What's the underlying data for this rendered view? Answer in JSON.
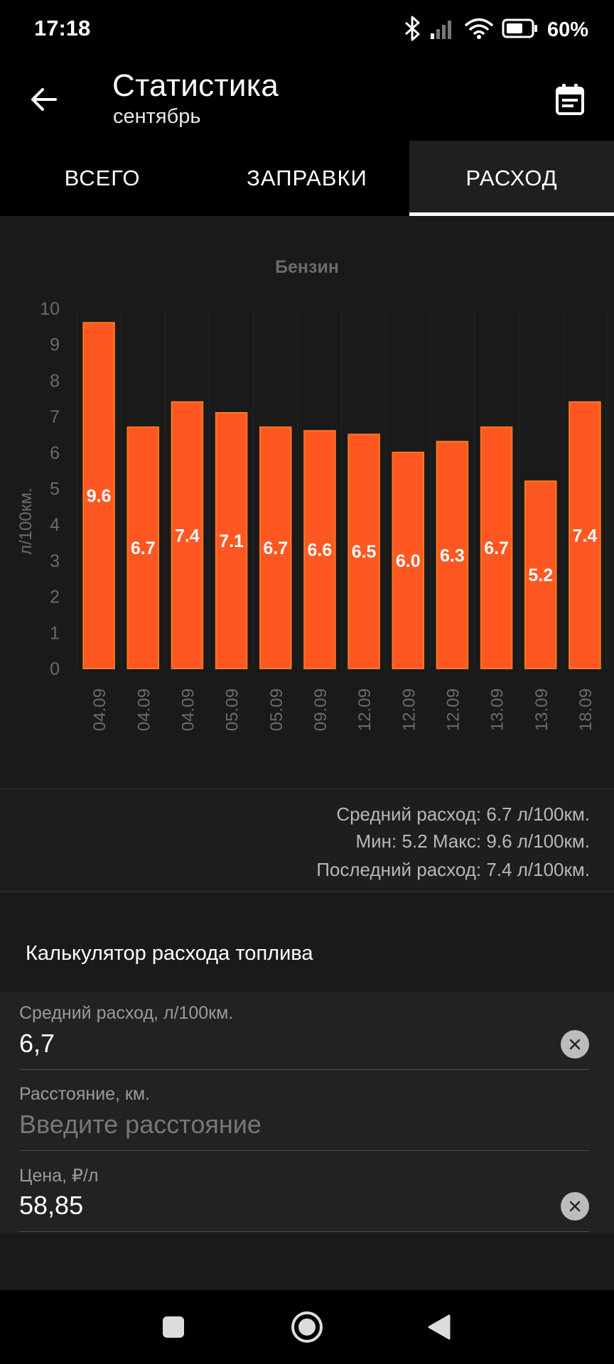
{
  "status_bar": {
    "time": "17:18",
    "battery_percent": "60%",
    "icons": [
      "bluetooth-icon",
      "signal-icon",
      "wifi-icon",
      "battery-icon"
    ]
  },
  "header": {
    "title": "Статистика",
    "subtitle": "сентябрь",
    "back_icon": "arrow-left-icon",
    "calendar_icon": "calendar-icon"
  },
  "tabs": [
    {
      "label": "ВСЕГО",
      "active": false
    },
    {
      "label": "ЗАПРАВКИ",
      "active": false
    },
    {
      "label": "РАСХОД",
      "active": true
    }
  ],
  "chart_data": {
    "type": "bar",
    "title": "Бензин",
    "xlabel": "",
    "ylabel": "л/100км.",
    "ylim": [
      0,
      10
    ],
    "yticks": [
      0,
      1,
      2,
      3,
      4,
      5,
      6,
      7,
      8,
      9,
      10
    ],
    "categories": [
      "04.09",
      "04.09",
      "04.09",
      "05.09",
      "05.09",
      "09.09",
      "12.09",
      "12.09",
      "12.09",
      "13.09",
      "13.09",
      "18.09"
    ],
    "values": [
      9.6,
      6.7,
      7.4,
      7.1,
      6.7,
      6.6,
      6.5,
      6.0,
      6.3,
      6.7,
      5.2,
      7.4
    ],
    "data_labels": [
      "9.6",
      "6.7",
      "7.4",
      "7.1",
      "6.7",
      "6.6",
      "6.5",
      "6.0",
      "6.3",
      "6.7",
      "5.2",
      "7.4"
    ],
    "grid": true,
    "legend": "none",
    "colors": {
      "bar": "#ff5722",
      "bar_edge": "#ff7a1a",
      "axis_text": "#6b6b6b"
    }
  },
  "summary": {
    "avg": "Средний расход: 6.7 л/100км.",
    "minmax": "Мин: 5.2 Макс: 9.6 л/100км.",
    "last": "Последний расход: 7.4 л/100км."
  },
  "calculator": {
    "title": "Калькулятор расхода топлива",
    "fields": [
      {
        "label": "Средний расход, л/100км.",
        "value": "6,7",
        "placeholder": ""
      },
      {
        "label": "Расстояние, км.",
        "value": "",
        "placeholder": "Введите расстояние"
      },
      {
        "label": "Цена, ₽/л",
        "value": "58,85",
        "placeholder": ""
      }
    ]
  },
  "nav_bar": {
    "icons": [
      "recents-square-icon",
      "home-circle-icon",
      "back-triangle-icon"
    ]
  }
}
